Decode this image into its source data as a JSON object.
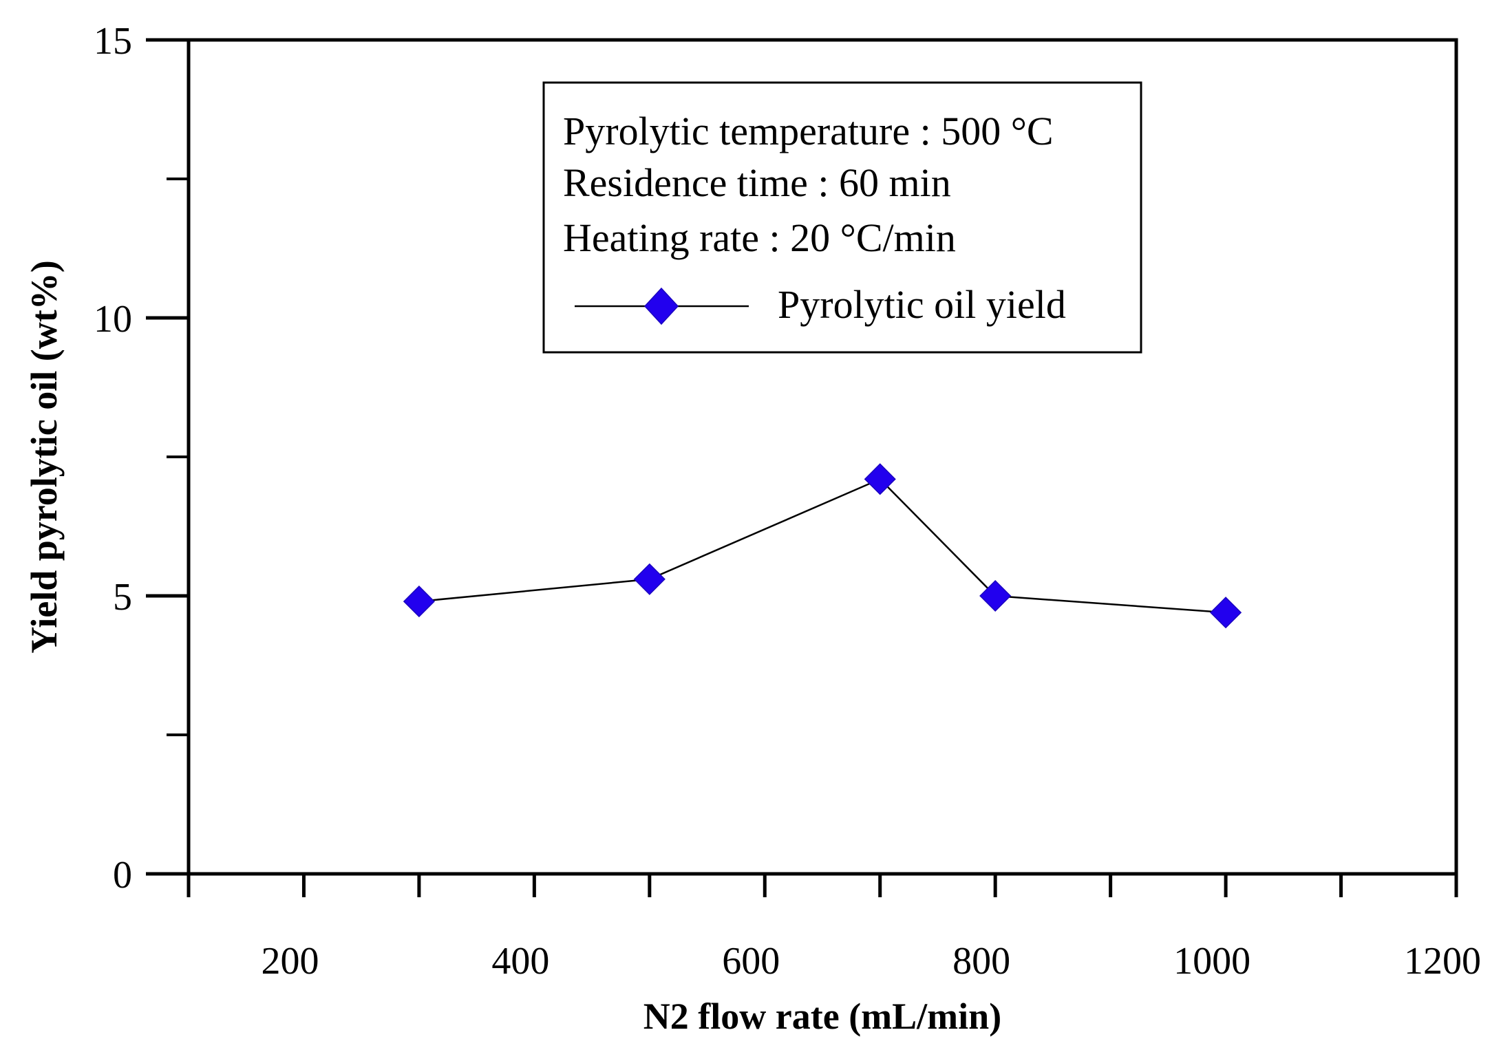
{
  "chart_data": {
    "type": "line",
    "title": "",
    "xlabel": "N2 flow rate (mL/min)",
    "ylabel": "Yield pyrolytic oil (wt%)",
    "xlim": [
      100,
      1200
    ],
    "ylim": [
      0,
      15
    ],
    "x_ticks": [
      200,
      400,
      600,
      800,
      1000,
      1200
    ],
    "x_minor_ticks": [
      100,
      300,
      500,
      700,
      900,
      1100
    ],
    "y_ticks": [
      0,
      5,
      10,
      15
    ],
    "y_minor_ticks": [
      2.5,
      7.5,
      12.5
    ],
    "grid": false,
    "legend_position": "top-center",
    "legend": {
      "notes": [
        "Pyrolytic temperature : 500 °C",
        "Residence time : 60 min",
        "Heating rate : 20 °C/min"
      ]
    },
    "series": [
      {
        "name": "Pyrolytic oil yield",
        "marker": "diamond",
        "marker_color": "#2200ee",
        "line_color": "#000000",
        "x": [
          300,
          500,
          700,
          800,
          1000
        ],
        "y": [
          4.9,
          5.3,
          7.1,
          5.0,
          4.7
        ]
      }
    ]
  }
}
